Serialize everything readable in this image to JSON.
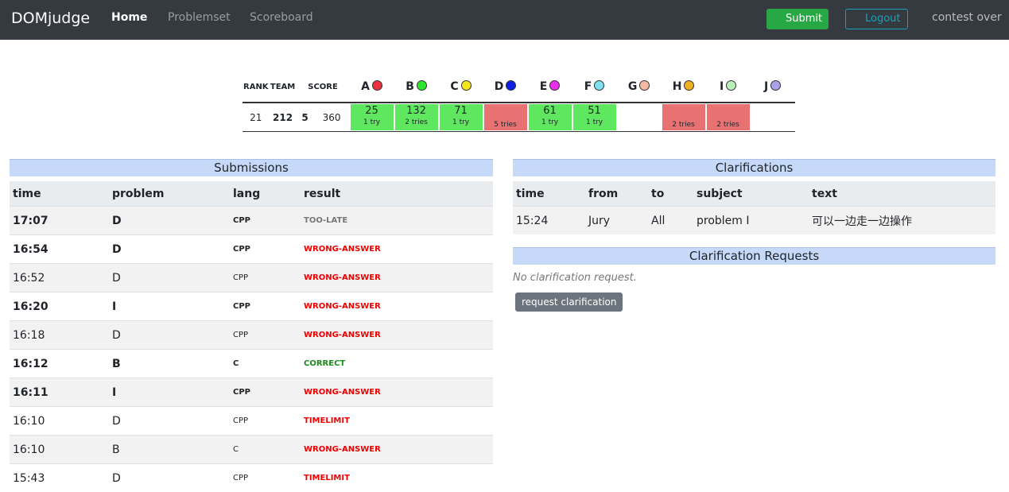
{
  "navbar": {
    "brand": "DOMjudge",
    "links": [
      {
        "label": "Home",
        "active": true
      },
      {
        "label": "Problemset",
        "active": false
      },
      {
        "label": "Scoreboard",
        "active": false
      }
    ],
    "submit": "Submit",
    "logout": "Logout",
    "status": "contest over"
  },
  "scoreboard": {
    "headers": {
      "rank": "RANK",
      "team": "TEAM",
      "score": "SCORE"
    },
    "problems": [
      {
        "label": "A",
        "color": "#e8303e"
      },
      {
        "label": "B",
        "color": "#2ee62e"
      },
      {
        "label": "C",
        "color": "#f5e51b"
      },
      {
        "label": "D",
        "color": "#0d1ee6"
      },
      {
        "label": "E",
        "color": "#e82ee8"
      },
      {
        "label": "F",
        "color": "#7fe0f0"
      },
      {
        "label": "G",
        "color": "#f5b8a0"
      },
      {
        "label": "H",
        "color": "#f0b020"
      },
      {
        "label": "I",
        "color": "#b8f0b8"
      },
      {
        "label": "J",
        "color": "#a8a0e8"
      }
    ],
    "row": {
      "rank": 21,
      "team": 212,
      "solved": 5,
      "time": 360,
      "cells": [
        {
          "time": 25,
          "tries": "1 try",
          "status": "correct"
        },
        {
          "time": 132,
          "tries": "2 tries",
          "status": "correct"
        },
        {
          "time": 71,
          "tries": "1 try",
          "status": "correct"
        },
        {
          "tries": "5 tries",
          "status": "incorrect"
        },
        {
          "time": 61,
          "tries": "1 try",
          "status": "correct"
        },
        {
          "time": 51,
          "tries": "1 try",
          "status": "correct"
        },
        {
          "status": "none"
        },
        {
          "tries": "2 tries",
          "status": "incorrect"
        },
        {
          "tries": "2 tries",
          "status": "incorrect"
        },
        {
          "status": "none"
        }
      ]
    }
  },
  "submissions": {
    "title": "Submissions",
    "headers": [
      "time",
      "problem",
      "lang",
      "result"
    ],
    "rows": [
      {
        "time": "17:07",
        "problem": "D",
        "lang": "CPP",
        "result": "TOO-LATE",
        "unread": true
      },
      {
        "time": "16:54",
        "problem": "D",
        "lang": "CPP",
        "result": "WRONG-ANSWER",
        "unread": true
      },
      {
        "time": "16:52",
        "problem": "D",
        "lang": "CPP",
        "result": "WRONG-ANSWER",
        "unread": false
      },
      {
        "time": "16:20",
        "problem": "I",
        "lang": "CPP",
        "result": "WRONG-ANSWER",
        "unread": true
      },
      {
        "time": "16:18",
        "problem": "D",
        "lang": "CPP",
        "result": "WRONG-ANSWER",
        "unread": false
      },
      {
        "time": "16:12",
        "problem": "B",
        "lang": "C",
        "result": "CORRECT",
        "unread": true
      },
      {
        "time": "16:11",
        "problem": "I",
        "lang": "CPP",
        "result": "WRONG-ANSWER",
        "unread": true
      },
      {
        "time": "16:10",
        "problem": "D",
        "lang": "CPP",
        "result": "TIMELIMIT",
        "unread": false
      },
      {
        "time": "16:10",
        "problem": "B",
        "lang": "C",
        "result": "WRONG-ANSWER",
        "unread": false
      },
      {
        "time": "15:43",
        "problem": "D",
        "lang": "CPP",
        "result": "TIMELIMIT",
        "unread": false
      }
    ]
  },
  "clarifications": {
    "title": "Clarifications",
    "headers": [
      "time",
      "from",
      "to",
      "subject",
      "text"
    ],
    "rows": [
      [
        "15:24",
        "Jury",
        "All",
        "problem I",
        "可以一边走一边操作"
      ]
    ]
  },
  "requests": {
    "title": "Clarification Requests",
    "empty": "No clarification request.",
    "button": "request clarification"
  }
}
